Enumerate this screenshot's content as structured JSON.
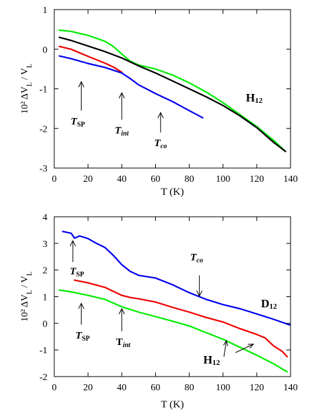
{
  "chart_data": [
    {
      "type": "line",
      "panel": "top",
      "xlabel": "T (K)",
      "ylabel": "10² ΔV_L / V_L",
      "xlim": [
        0,
        140
      ],
      "ylim": [
        -3,
        1
      ],
      "xticks": [
        0,
        20,
        40,
        60,
        80,
        100,
        120,
        140
      ],
      "yticks": [
        1,
        0,
        -1,
        -2,
        -3
      ],
      "series": [
        {
          "color": "#00ee00",
          "x": [
            3,
            10,
            20,
            30,
            35,
            40,
            45,
            50,
            60,
            70,
            80,
            90,
            100,
            110,
            120,
            130,
            137
          ],
          "y": [
            0.48,
            0.45,
            0.35,
            0.2,
            0.07,
            -0.12,
            -0.3,
            -0.4,
            -0.5,
            -0.65,
            -0.85,
            -1.08,
            -1.35,
            -1.65,
            -1.95,
            -2.3,
            -2.58
          ]
        },
        {
          "color": "#000000",
          "x": [
            3,
            10,
            20,
            30,
            40,
            50,
            60,
            70,
            80,
            90,
            100,
            110,
            120,
            130,
            137
          ],
          "y": [
            0.3,
            0.22,
            0.08,
            -0.06,
            -0.22,
            -0.42,
            -0.6,
            -0.8,
            -1.0,
            -1.2,
            -1.42,
            -1.68,
            -1.98,
            -2.35,
            -2.58
          ]
        },
        {
          "color": "#ee0000",
          "x": [
            3,
            10,
            20,
            30,
            35,
            40
          ],
          "y": [
            0.07,
            0.0,
            -0.18,
            -0.35,
            -0.45,
            -0.58
          ]
        },
        {
          "color": "#0000ee",
          "x": [
            3,
            10,
            20,
            30,
            40,
            45,
            50,
            60,
            70,
            80,
            88
          ],
          "y": [
            -0.17,
            -0.24,
            -0.36,
            -0.46,
            -0.6,
            -0.74,
            -0.9,
            -1.12,
            -1.32,
            -1.55,
            -1.73
          ]
        }
      ],
      "annotations": [
        {
          "label": "T",
          "sub": "SP",
          "style": "italic",
          "arrow_x": 16,
          "arrow_y_from": -1.55,
          "arrow_y_to": -0.82
        },
        {
          "label": "T",
          "sub": "int",
          "style": "italic",
          "arrow_x": 40,
          "arrow_y_from": -1.78,
          "arrow_y_to": -1.1
        },
        {
          "label": "T",
          "sub": "co",
          "style": "italic",
          "arrow_x": 63,
          "arrow_y_from": -2.1,
          "arrow_y_to": -1.6
        }
      ],
      "panel_label": {
        "main": "H",
        "sub": "12"
      }
    },
    {
      "type": "line",
      "panel": "bottom",
      "xlabel": "T (K)",
      "ylabel": "10² ΔV_L / V_L",
      "xlim": [
        0,
        140
      ],
      "ylim": [
        -2,
        4
      ],
      "xticks": [
        0,
        20,
        40,
        60,
        80,
        100,
        120,
        140
      ],
      "yticks": [
        4,
        3,
        2,
        1,
        0,
        -1,
        -2
      ],
      "series": [
        {
          "color": "#0000ee",
          "x": [
            5,
            10,
            12,
            15,
            20,
            25,
            30,
            35,
            40,
            45,
            50,
            60,
            70,
            80,
            90,
            100,
            110,
            120,
            130,
            140
          ],
          "y": [
            3.45,
            3.38,
            3.2,
            3.28,
            3.18,
            3.0,
            2.85,
            2.55,
            2.2,
            1.95,
            1.8,
            1.7,
            1.45,
            1.15,
            0.9,
            0.7,
            0.55,
            0.35,
            0.15,
            -0.07
          ]
        },
        {
          "color": "#ee0000",
          "x": [
            12,
            20,
            30,
            40,
            45,
            50,
            60,
            70,
            80,
            90,
            100,
            110,
            120,
            125,
            130,
            135,
            138
          ],
          "y": [
            1.62,
            1.52,
            1.35,
            1.05,
            0.97,
            0.92,
            0.8,
            0.6,
            0.42,
            0.22,
            0.05,
            -0.2,
            -0.42,
            -0.55,
            -0.85,
            -1.05,
            -1.25
          ]
        },
        {
          "color": "#00ee00",
          "x": [
            3,
            10,
            20,
            30,
            40,
            50,
            60,
            70,
            80,
            90,
            100,
            110,
            120,
            130,
            138
          ],
          "y": [
            1.25,
            1.18,
            1.05,
            0.9,
            0.62,
            0.42,
            0.25,
            0.08,
            -0.1,
            -0.35,
            -0.6,
            -0.9,
            -1.2,
            -1.52,
            -1.82
          ]
        }
      ],
      "annotations": [
        {
          "label": "T",
          "sub": "SP",
          "style": "italic",
          "arrow_x": 11,
          "arrow_y_from": 2.3,
          "arrow_y_to": 3.1
        },
        {
          "label": "T",
          "sub": "SP",
          "style": "italic",
          "arrow_x": 16,
          "arrow_y_from": -0.05,
          "arrow_y_to": 0.75
        },
        {
          "label": "T",
          "sub": "int",
          "style": "bold",
          "arrow_x": 40,
          "arrow_y_from": -0.3,
          "arrow_y_to": 0.55
        },
        {
          "label": "T",
          "sub": "co",
          "style": "italic",
          "arrow_x": 86,
          "arrow_y_from": 1.8,
          "arrow_y_to": 1.02
        }
      ],
      "panel_labels": [
        {
          "main": "D",
          "sub": "12"
        },
        {
          "main": "H",
          "sub": "12"
        }
      ]
    }
  ]
}
